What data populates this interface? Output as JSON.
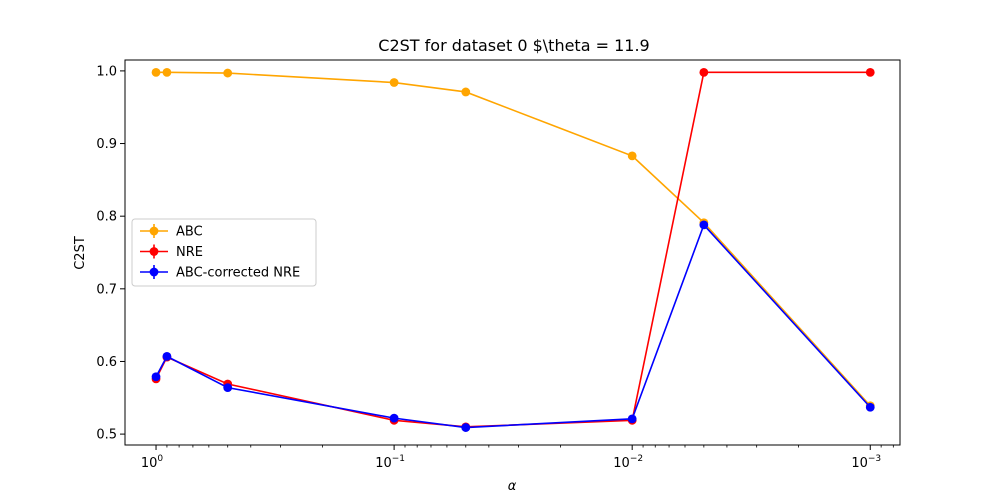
{
  "chart_data": {
    "type": "line",
    "title": "C2ST for dataset 0 $\\theta = 11.9",
    "xlabel": "α",
    "ylabel": "C2ST",
    "xscale": "log-reversed",
    "xlim": [
      1.35,
      0.00075
    ],
    "ylim": [
      0.485,
      1.015
    ],
    "x_ticks": [
      {
        "value": 1,
        "label_base": "10",
        "label_exp": "0"
      },
      {
        "value": 0.1,
        "label_base": "10",
        "label_exp": "−1"
      },
      {
        "value": 0.01,
        "label_base": "10",
        "label_exp": "−2"
      },
      {
        "value": 0.001,
        "label_base": "10",
        "label_exp": "−3"
      }
    ],
    "y_ticks": [
      "0.5",
      "0.6",
      "0.7",
      "0.8",
      "0.9",
      "1.0"
    ],
    "y_tick_values": [
      0.5,
      0.6,
      0.7,
      0.8,
      0.9,
      1.0
    ],
    "x": [
      1,
      0.9,
      0.5,
      0.1,
      0.05,
      0.01,
      0.005,
      0.001
    ],
    "series": [
      {
        "name": "ABC",
        "color": "#ffa500",
        "values": [
          0.998,
          0.998,
          0.997,
          0.984,
          0.971,
          0.883,
          0.791,
          0.539
        ]
      },
      {
        "name": "NRE",
        "color": "#ff0000",
        "values": [
          0.576,
          0.606,
          0.569,
          0.519,
          0.51,
          0.519,
          0.998,
          0.998
        ]
      },
      {
        "name": "ABC-corrected NRE",
        "color": "#0000ff",
        "values": [
          0.579,
          0.607,
          0.564,
          0.522,
          0.509,
          0.521,
          0.788,
          0.537
        ]
      }
    ],
    "legend_position": "center-left"
  }
}
